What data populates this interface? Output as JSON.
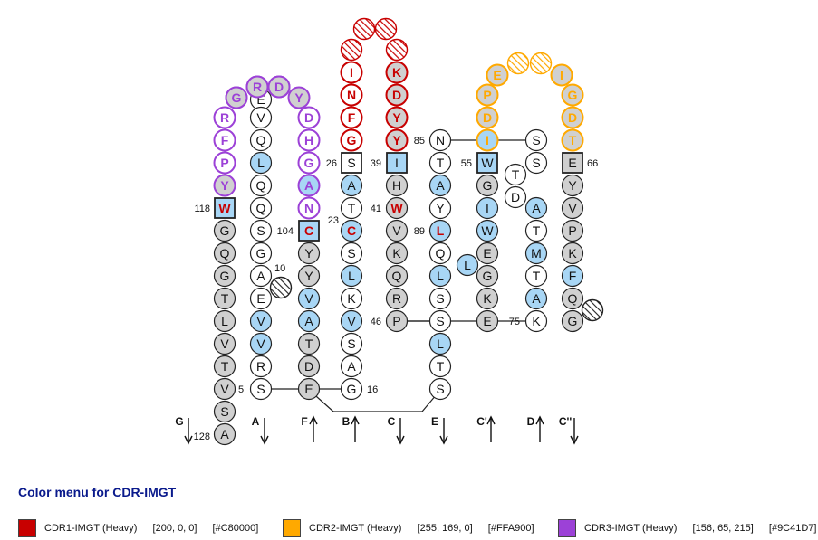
{
  "colors": {
    "cdr1": "#C80000",
    "cdr2": "#FFA900",
    "cdr3": "#9C41D7",
    "gray_fill": "#d0d0d0",
    "blue_fill": "#a8d6f5",
    "hatch": "#333333"
  },
  "strands": [
    {
      "label": "G",
      "dir": "down"
    },
    {
      "label": "A",
      "dir": "down"
    },
    {
      "label": "F",
      "dir": "up"
    },
    {
      "label": "B",
      "dir": "up"
    },
    {
      "label": "C",
      "dir": "down"
    },
    {
      "label": "E",
      "dir": "down"
    },
    {
      "label": "C'",
      "dir": "up"
    },
    {
      "label": "D",
      "dir": "up"
    },
    {
      "label": "C''",
      "dir": "down"
    }
  ],
  "position_labels": [
    "118",
    "128",
    "5",
    "10",
    "104",
    "26",
    "23",
    "16",
    "39",
    "41",
    "46",
    "85",
    "89",
    "55",
    "75",
    "66"
  ],
  "residues": {
    "G": [
      "W",
      "G",
      "Q",
      "G",
      "T",
      "L",
      "V",
      "T",
      "V",
      "S",
      "A"
    ],
    "A": [
      "E",
      "V",
      "Q",
      "L",
      "Q",
      "Q",
      "S",
      "G",
      "A",
      "E",
      "V",
      "V",
      "R",
      "S"
    ],
    "F": [
      "C",
      "Y",
      "Y",
      "V",
      "A",
      "T",
      "D",
      "E"
    ],
    "B": [
      "S",
      "A",
      "T",
      "C",
      "S",
      "L",
      "K",
      "V",
      "S",
      "A",
      "G"
    ],
    "C": [
      "I",
      "H",
      "W",
      "V",
      "K",
      "Q",
      "R",
      "P"
    ],
    "E": [
      "N",
      "T",
      "A",
      "Y",
      "L",
      "Q",
      "L",
      "S",
      "S",
      "L",
      "T",
      "S"
    ],
    "Cp": [
      "W",
      "G",
      "I",
      "W",
      "E",
      "G",
      "K",
      "E"
    ],
    "D": [
      "S",
      "S",
      "T",
      "D",
      "A",
      "T",
      "M",
      "T",
      "A",
      "K"
    ],
    "Cpp": [
      "E",
      "Y",
      "V",
      "P",
      "K",
      "F",
      "Q",
      "G"
    ],
    "loop_L": "L",
    "cdr1_left": [
      "I",
      "N",
      "F",
      "G"
    ],
    "cdr1_right": [
      "K",
      "D",
      "Y",
      "Y"
    ],
    "cdr2_left": [
      "E",
      "P",
      "D",
      "I"
    ],
    "cdr2_right": [
      "I",
      "G",
      "D",
      "T"
    ],
    "cdr3_left": [
      "G",
      "R",
      "F",
      "P",
      "Y"
    ],
    "cdr3_top": [
      "R",
      "D"
    ],
    "cdr3_right": [
      "Y",
      "D",
      "H",
      "G",
      "A",
      "N"
    ]
  },
  "menu": {
    "title": "Color menu for CDR-IMGT",
    "items": [
      {
        "name": "CDR1-IMGT (Heavy)",
        "rgb": "[200, 0, 0]",
        "hex": "[#C80000]"
      },
      {
        "name": "CDR2-IMGT (Heavy)",
        "rgb": "[255, 169, 0]",
        "hex": "[#FFA900]"
      },
      {
        "name": "CDR3-IMGT (Heavy)",
        "rgb": "[156, 65, 215]",
        "hex": "[#9C41D7]"
      }
    ]
  }
}
